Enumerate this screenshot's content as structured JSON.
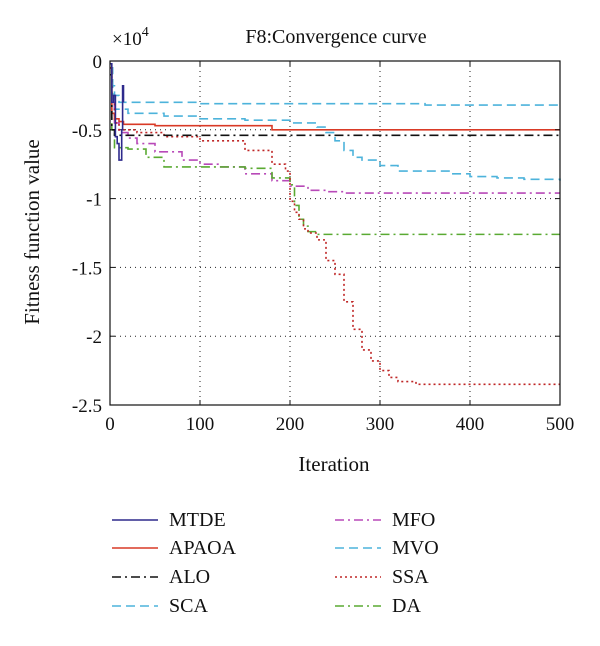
{
  "chart_data": {
    "type": "line",
    "title": "F8:Convergence curve",
    "xlabel": "Iteration",
    "ylabel": "Fitness function value",
    "multiplier_base": "×10",
    "multiplier_exp": "4",
    "xlim": [
      0,
      500
    ],
    "ylim": [
      -2.5,
      0
    ],
    "xticks": [
      0,
      100,
      200,
      300,
      400,
      500
    ],
    "yticks": [
      0,
      -0.5,
      -1,
      -1.5,
      -2,
      -2.5
    ],
    "xtick_labels": [
      "0",
      "100",
      "200",
      "300",
      "400",
      "500"
    ],
    "ytick_labels": [
      "0",
      "-0.5",
      "-1",
      "-1.5",
      "-2",
      "-2.5"
    ],
    "grid": true,
    "legend_position": "bottom",
    "series": [
      {
        "name": "MTDE",
        "color": "#2e2a8c",
        "dash": "solid",
        "x": [
          0,
          2,
          4,
          6,
          8,
          10,
          12,
          13,
          14,
          15
        ],
        "y": [
          -0.02,
          -0.3,
          -0.25,
          -0.55,
          -0.6,
          -0.72,
          -0.72,
          -0.5,
          -0.18,
          -0.3
        ]
      },
      {
        "name": "APAOA",
        "color": "#d93a26",
        "dash": "solid",
        "x": [
          0,
          2,
          5,
          10,
          15,
          30,
          50,
          80,
          100,
          150,
          180,
          200,
          250,
          300,
          400,
          500
        ],
        "y": [
          -0.05,
          -0.38,
          -0.42,
          -0.44,
          -0.46,
          -0.46,
          -0.47,
          -0.47,
          -0.47,
          -0.47,
          -0.5,
          -0.5,
          -0.5,
          -0.5,
          -0.5,
          -0.5
        ]
      },
      {
        "name": "ALO",
        "color": "#111111",
        "dash": "dashdot",
        "x": [
          0,
          2,
          5,
          10,
          50,
          100,
          200,
          300,
          400,
          500
        ],
        "y": [
          -0.1,
          -0.5,
          -0.54,
          -0.54,
          -0.54,
          -0.54,
          -0.54,
          -0.54,
          -0.54,
          -0.54
        ]
      },
      {
        "name": "SCA",
        "color": "#4db3db",
        "dash": "dashed",
        "x": [
          0,
          3,
          5,
          10,
          40,
          100,
          200,
          350,
          500
        ],
        "y": [
          -0.05,
          -0.18,
          -0.25,
          -0.3,
          -0.3,
          -0.31,
          -0.31,
          -0.32,
          -0.32
        ]
      },
      {
        "name": "MVO",
        "color": "#4db3db",
        "dash": "dashed",
        "x": [
          0,
          3,
          5,
          20,
          60,
          100,
          150,
          200,
          230,
          240,
          250,
          260,
          270,
          280,
          300,
          320,
          350,
          380,
          400,
          430,
          460,
          500
        ],
        "y": [
          -0.05,
          -0.25,
          -0.35,
          -0.38,
          -0.4,
          -0.42,
          -0.43,
          -0.45,
          -0.48,
          -0.52,
          -0.58,
          -0.65,
          -0.7,
          -0.72,
          -0.76,
          -0.8,
          -0.8,
          -0.82,
          -0.84,
          -0.85,
          -0.86,
          -0.87
        ]
      },
      {
        "name": "MFO",
        "color": "#b849b8",
        "dash": "dashdot",
        "x": [
          0,
          2,
          5,
          10,
          20,
          30,
          50,
          80,
          100,
          120,
          150,
          180,
          200,
          220,
          240,
          260,
          300,
          400,
          500
        ],
        "y": [
          -0.05,
          -0.3,
          -0.45,
          -0.52,
          -0.56,
          -0.6,
          -0.66,
          -0.72,
          -0.75,
          -0.77,
          -0.82,
          -0.87,
          -0.91,
          -0.94,
          -0.95,
          -0.96,
          -0.96,
          -0.96,
          -0.96
        ]
      },
      {
        "name": "SSA",
        "color": "#bf2626",
        "dash": "dotted",
        "x": [
          0,
          2,
          5,
          10,
          30,
          60,
          100,
          150,
          180,
          195,
          200,
          205,
          210,
          215,
          220,
          230,
          240,
          250,
          260,
          270,
          280,
          290,
          300,
          310,
          320,
          340,
          380,
          420,
          460,
          500
        ],
        "y": [
          -0.05,
          -0.3,
          -0.45,
          -0.5,
          -0.52,
          -0.55,
          -0.58,
          -0.65,
          -0.75,
          -0.8,
          -1.02,
          -1.1,
          -1.15,
          -1.22,
          -1.25,
          -1.3,
          -1.45,
          -1.55,
          -1.75,
          -1.95,
          -2.1,
          -2.18,
          -2.25,
          -2.3,
          -2.33,
          -2.35,
          -2.35,
          -2.35,
          -2.35,
          -2.35
        ]
      },
      {
        "name": "DA",
        "color": "#5aaa32",
        "dash": "dashdot",
        "x": [
          0,
          2,
          5,
          20,
          40,
          60,
          100,
          150,
          180,
          200,
          205,
          210,
          215,
          220,
          230,
          240,
          260,
          300,
          400,
          500
        ],
        "y": [
          -0.05,
          -0.5,
          -0.63,
          -0.64,
          -0.7,
          -0.77,
          -0.77,
          -0.78,
          -0.85,
          -0.9,
          -1.05,
          -1.15,
          -1.2,
          -1.24,
          -1.26,
          -1.26,
          -1.26,
          -1.26,
          -1.26,
          -1.26
        ]
      }
    ],
    "legend": {
      "left": [
        "MTDE",
        "APAOA",
        "ALO",
        "SCA"
      ],
      "right": [
        "MFO",
        "MVO",
        "SSA",
        "DA"
      ]
    }
  }
}
